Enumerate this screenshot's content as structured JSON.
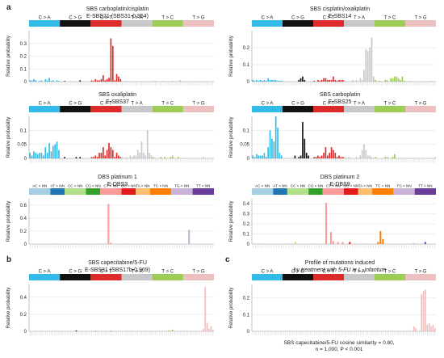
{
  "panel_letters": [
    "a",
    "b",
    "c"
  ],
  "footer": {
    "line1": "SBS capecitabine/5-FU cosine similarity = 0.80,",
    "line2": "n = 1,000, P < 0.001"
  },
  "colors": {
    "C>A": "#33bbe8",
    "C>G": "#111111",
    "C>T": "#dd2a2a",
    "T>A": "#c8c8c8",
    "T>C": "#9ccc55",
    "T>G": "#edc0c0",
    "AC": "#a6cee3",
    "AT": "#1f78b4",
    "CC": "#b2df8a",
    "CG": "#33a02c",
    "CT": "#fb9a99",
    "GC": "#e31a1c",
    "TA": "#fdbf6f",
    "TC": "#ff7f00",
    "TG": "#cab2d6",
    "TT": "#6a3d9a"
  },
  "chart_data": [
    {
      "type": "bar",
      "title": "SBS carboplatin/cisplatin",
      "subtitle": "E-SBS21 (SBS31-0.954)",
      "ylabel": "Relative probability",
      "groups": [
        "C > A",
        "C > G",
        "C > T",
        "T > A",
        "T > C",
        "T > G"
      ],
      "group_colors": [
        "C>A",
        "C>G",
        "C>T",
        "T>A",
        "T>C",
        "T>G"
      ],
      "ylim": [
        0,
        0.4
      ],
      "yticks": [
        0,
        0.1,
        0.2,
        0.3
      ],
      "categories_per_group": 16,
      "values": [
        [
          0.01,
          0.01,
          0.02,
          0.01,
          0,
          0.005,
          0.01,
          0,
          0.02,
          0.01,
          0.03,
          0.005,
          0.01,
          0,
          0.01,
          0.005
        ],
        [
          0,
          0,
          0.005,
          0,
          0,
          0,
          0,
          0,
          0,
          0,
          0.01,
          0,
          0,
          0,
          0,
          0
        ],
        [
          0.01,
          0.005,
          0.02,
          0.01,
          0.01,
          0.02,
          0.05,
          0.01,
          0.02,
          0.03,
          0.34,
          0.28,
          0.01,
          0.06,
          0.04,
          0.02
        ],
        [
          0,
          0,
          0.005,
          0,
          0,
          0,
          0,
          0.005,
          0,
          0,
          0.005,
          0,
          0,
          0,
          0,
          0
        ],
        [
          0,
          0.005,
          0,
          0,
          0,
          0.005,
          0,
          0,
          0,
          0,
          0.005,
          0,
          0,
          0,
          0.01,
          0
        ],
        [
          0,
          0,
          0,
          0,
          0,
          0.005,
          0,
          0,
          0,
          0,
          0,
          0,
          0,
          0,
          0,
          0.005
        ]
      ]
    },
    {
      "type": "bar",
      "title": "SBS cisplatin/oxaliplatin",
      "subtitle": "E-SBS14",
      "ylabel": "Relative probability",
      "groups": [
        "C > A",
        "C > G",
        "C > T",
        "T > A",
        "T > C",
        "T > G"
      ],
      "group_colors": [
        "C>A",
        "C>G",
        "C>T",
        "T>A",
        "T>C",
        "T>G"
      ],
      "ylim": [
        0,
        0.3
      ],
      "yticks": [
        0,
        0.1,
        0.2
      ],
      "categories_per_group": 16,
      "values": [
        [
          0.01,
          0.005,
          0.01,
          0.005,
          0.01,
          0.005,
          0.01,
          0.005,
          0.02,
          0.01,
          0.01,
          0.01,
          0.01,
          0.005,
          0.005,
          0.005
        ],
        [
          0,
          0,
          0,
          0,
          0,
          0,
          0,
          0,
          0.01,
          0.02,
          0.03,
          0.01,
          0,
          0,
          0,
          0
        ],
        [
          0.005,
          0,
          0.01,
          0.005,
          0.01,
          0.02,
          0.02,
          0.01,
          0.01,
          0.01,
          0.03,
          0.01,
          0.005,
          0.01,
          0.01,
          0.01
        ],
        [
          0.005,
          0,
          0,
          0,
          0.01,
          0,
          0.01,
          0,
          0.02,
          0.01,
          0.07,
          0.19,
          0.18,
          0.2,
          0.26,
          0.03
        ],
        [
          0.01,
          0,
          0.005,
          0,
          0,
          0.01,
          0.01,
          0,
          0.02,
          0.02,
          0.03,
          0.03,
          0.02,
          0.01,
          0.03,
          0.005
        ],
        [
          0,
          0,
          0.005,
          0,
          0,
          0,
          0,
          0,
          0,
          0,
          0,
          0,
          0,
          0.005,
          0,
          0
        ]
      ]
    },
    {
      "type": "bar",
      "title": "SBS oxaliplatin",
      "subtitle": "E-SBS37",
      "ylabel": "Relative probability",
      "groups": [
        "C > A",
        "C > G",
        "C > T",
        "T > A",
        "T > C",
        "T > G"
      ],
      "group_colors": [
        "C>A",
        "C>G",
        "C>T",
        "T>A",
        "T>C",
        "T>G"
      ],
      "ylim": [
        0,
        0.15
      ],
      "yticks": [
        0,
        0.05,
        0.1
      ],
      "categories_per_group": 16,
      "values": [
        [
          0.02,
          0.01,
          0.025,
          0.02,
          0.015,
          0.02,
          0.02,
          0.01,
          0.04,
          0.02,
          0.055,
          0.025,
          0.045,
          0.05,
          0.06,
          0.03
        ],
        [
          0,
          0,
          0.005,
          0,
          0,
          0,
          0,
          0,
          0.005,
          0,
          0.005,
          0,
          0,
          0,
          0,
          0
        ],
        [
          0.005,
          0.005,
          0.01,
          0.005,
          0.02,
          0.02,
          0.04,
          0.01,
          0.03,
          0.055,
          0.04,
          0.03,
          0.005,
          0.02,
          0.01,
          0.005
        ],
        [
          0.005,
          0,
          0.005,
          0,
          0.01,
          0.005,
          0.01,
          0.01,
          0.03,
          0.02,
          0.06,
          0.02,
          0.01,
          0.1,
          0.02,
          0.01
        ],
        [
          0.005,
          0,
          0,
          0,
          0.005,
          0,
          0.005,
          0,
          0,
          0.005,
          0.01,
          0,
          0,
          0.005,
          0,
          0
        ],
        [
          0,
          0,
          0,
          0,
          0,
          0,
          0,
          0,
          0,
          0,
          0.005,
          0,
          0,
          0,
          0,
          0
        ]
      ]
    },
    {
      "type": "bar",
      "title": "SBS carboplatin",
      "subtitle": "E-SBS25",
      "ylabel": "Relative probability",
      "groups": [
        "C > A",
        "C > G",
        "C > T",
        "T > A",
        "T > C",
        "T > G"
      ],
      "group_colors": [
        "C>A",
        "C>G",
        "C>T",
        "T>A",
        "T>C",
        "T>G"
      ],
      "ylim": [
        0,
        0.15
      ],
      "yticks": [
        0,
        0.05,
        0.1
      ],
      "categories_per_group": 16,
      "values": [
        [
          0.01,
          0.005,
          0.015,
          0.01,
          0.01,
          0.01,
          0.02,
          0.005,
          0.04,
          0.1,
          0.07,
          0.06,
          0.15,
          0.11,
          0.02,
          0.01
        ],
        [
          0,
          0,
          0,
          0,
          0,
          0,
          0.01,
          0,
          0.005,
          0.01,
          0.13,
          0.07,
          0.02,
          0.01,
          0,
          0
        ],
        [
          0.005,
          0.005,
          0.01,
          0.005,
          0.01,
          0.02,
          0.04,
          0.01,
          0.02,
          0.04,
          0.03,
          0.02,
          0.005,
          0.01,
          0.005,
          0.005
        ],
        [
          0.005,
          0,
          0.005,
          0,
          0,
          0,
          0.005,
          0,
          0.01,
          0.03,
          0.05,
          0.03,
          0.01,
          0.01,
          0.005,
          0
        ],
        [
          0.005,
          0,
          0,
          0,
          0,
          0.005,
          0.005,
          0,
          0,
          0.005,
          0.015,
          0,
          0,
          0,
          0,
          0
        ],
        [
          0,
          0,
          0,
          0,
          0,
          0,
          0,
          0,
          0,
          0,
          0,
          0,
          0,
          0,
          0,
          0.005
        ]
      ]
    },
    {
      "type": "bar",
      "title": "DBS platinum 1",
      "subtitle": "E-DBS3",
      "ylabel": "Relative probability",
      "groups": [
        "AC > NN",
        "AT > NN",
        "CC > NN",
        "CG > NN",
        "CT > NN",
        "GC > NN",
        "TA > NN",
        "TC > NN",
        "TG > NN",
        "TT > NN"
      ],
      "group_colors": [
        "AC",
        "AT",
        "CC",
        "CG",
        "CT",
        "GC",
        "TA",
        "TC",
        "TG",
        "TT"
      ],
      "group_sizes": [
        9,
        6,
        9,
        6,
        9,
        6,
        6,
        9,
        9,
        9
      ],
      "ylim": [
        0,
        0.7
      ],
      "yticks": [
        0,
        0.2,
        0.4,
        0.6
      ],
      "values": [
        [
          0,
          0,
          0,
          0,
          0,
          0,
          0,
          0,
          0
        ],
        [
          0,
          0,
          0,
          0,
          0,
          0
        ],
        [
          0,
          0,
          0,
          0,
          0,
          0,
          0,
          0,
          0
        ],
        [
          0,
          0,
          0,
          0,
          0,
          0
        ],
        [
          0,
          0,
          0,
          0.62,
          0.02,
          0,
          0,
          0,
          0
        ],
        [
          0,
          0,
          0,
          0,
          0,
          0
        ],
        [
          0,
          0,
          0,
          0,
          0,
          0
        ],
        [
          0,
          0,
          0,
          0,
          0,
          0,
          0,
          0,
          0
        ],
        [
          0,
          0,
          0,
          0,
          0,
          0,
          0,
          0.22,
          0
        ],
        [
          0,
          0,
          0,
          0,
          0,
          0,
          0,
          0,
          0
        ]
      ]
    },
    {
      "type": "bar",
      "title": "DBS platinum 2",
      "subtitle": "E-DBS9",
      "ylabel": "Relative probability",
      "groups": [
        "AC > NN",
        "AT > NN",
        "CC > NN",
        "CG > NN",
        "CT > NN",
        "GC > NN",
        "TA > NN",
        "TC > NN",
        "TG > NN",
        "TT > NN"
      ],
      "group_colors": [
        "AC",
        "AT",
        "CC",
        "CG",
        "CT",
        "GC",
        "TA",
        "TC",
        "TG",
        "TT"
      ],
      "group_sizes": [
        9,
        6,
        9,
        6,
        9,
        6,
        6,
        9,
        9,
        9
      ],
      "ylim": [
        0,
        0.45
      ],
      "yticks": [
        0,
        0.1,
        0.2,
        0.3,
        0.4
      ],
      "values": [
        [
          0,
          0,
          0,
          0,
          0,
          0,
          0,
          0,
          0
        ],
        [
          0,
          0,
          0,
          0,
          0,
          0
        ],
        [
          0,
          0,
          0,
          0.02,
          0,
          0,
          0,
          0,
          0
        ],
        [
          0,
          0,
          0,
          0,
          0,
          0
        ],
        [
          0,
          0.41,
          0,
          0.12,
          0.03,
          0,
          0.02,
          0,
          0.02
        ],
        [
          0,
          0,
          0.02,
          0,
          0,
          0
        ],
        [
          0,
          0,
          0,
          0,
          0,
          0
        ],
        [
          0,
          0,
          0.02,
          0.13,
          0.05,
          0,
          0,
          0,
          0
        ],
        [
          0,
          0,
          0,
          0,
          0,
          0,
          0,
          0,
          0.01
        ],
        [
          0,
          0,
          0,
          0,
          0.02,
          0,
          0,
          0,
          0
        ]
      ]
    },
    {
      "type": "bar",
      "title": "SBS capecitabine/5-FU",
      "subtitle": "E-SBS31 (SBS17b-0.969)",
      "ylabel": "Relative probability",
      "groups": [
        "C > A",
        "C > G",
        "C > T",
        "T > A",
        "T > C",
        "T > G"
      ],
      "group_colors": [
        "C>A",
        "C>G",
        "C>T",
        "T>A",
        "T>C",
        "T>G"
      ],
      "ylim": [
        0,
        0.55
      ],
      "yticks": [
        0,
        0.2,
        0.4
      ],
      "categories_per_group": 16,
      "values": [
        [
          0,
          0,
          0,
          0,
          0,
          0,
          0,
          0,
          0,
          0,
          0,
          0,
          0,
          0,
          0,
          0
        ],
        [
          0,
          0,
          0,
          0,
          0,
          0,
          0,
          0,
          0.01,
          0,
          0,
          0,
          0,
          0,
          0,
          0
        ],
        [
          0,
          0,
          0.005,
          0,
          0,
          0,
          0,
          0,
          0,
          0,
          0.005,
          0,
          0,
          0,
          0,
          0
        ],
        [
          0,
          0,
          0,
          0,
          0,
          0,
          0,
          0,
          0,
          0,
          0,
          0,
          0,
          0,
          0.005,
          0
        ],
        [
          0,
          0,
          0,
          0,
          0,
          0,
          0,
          0,
          0.01,
          0.005,
          0.02,
          0.005,
          0,
          0,
          0,
          0
        ],
        [
          0,
          0,
          0,
          0,
          0,
          0,
          0,
          0,
          0,
          0,
          0.03,
          0.52,
          0.1,
          0.03,
          0.06,
          0.02
        ]
      ]
    },
    {
      "type": "bar",
      "title": "Profile of mutations induced",
      "subtitle": "by treatment with 5-FU in L. infantum",
      "ylabel": "Relative probability",
      "groups": [
        "C > A",
        "C > G",
        "C > T",
        "T > A",
        "T > C",
        "T > G"
      ],
      "group_colors": [
        "C>A",
        "C>G",
        "C>T",
        "T>A",
        "T>C",
        "T>G"
      ],
      "ylim": [
        0,
        0.28
      ],
      "yticks": [
        0,
        0.1,
        0.2
      ],
      "categories_per_group": 16,
      "values": [
        [
          0,
          0,
          0,
          0,
          0,
          0,
          0,
          0,
          0,
          0,
          0,
          0,
          0,
          0,
          0,
          0
        ],
        [
          0,
          0,
          0,
          0,
          0,
          0,
          0,
          0,
          0,
          0,
          0,
          0,
          0,
          0,
          0,
          0
        ],
        [
          0,
          0,
          0,
          0,
          0,
          0,
          0,
          0,
          0,
          0,
          0,
          0,
          0,
          0,
          0,
          0
        ],
        [
          0,
          0,
          0,
          0,
          0,
          0,
          0,
          0,
          0,
          0,
          0,
          0,
          0,
          0,
          0,
          0
        ],
        [
          0,
          0,
          0,
          0,
          0,
          0,
          0,
          0,
          0,
          0,
          0,
          0,
          0,
          0,
          0,
          0
        ],
        [
          0,
          0,
          0,
          0,
          0.03,
          0.02,
          0,
          0,
          0.22,
          0.24,
          0.25,
          0.04,
          0.05,
          0.03,
          0.04,
          0.02
        ]
      ]
    }
  ]
}
